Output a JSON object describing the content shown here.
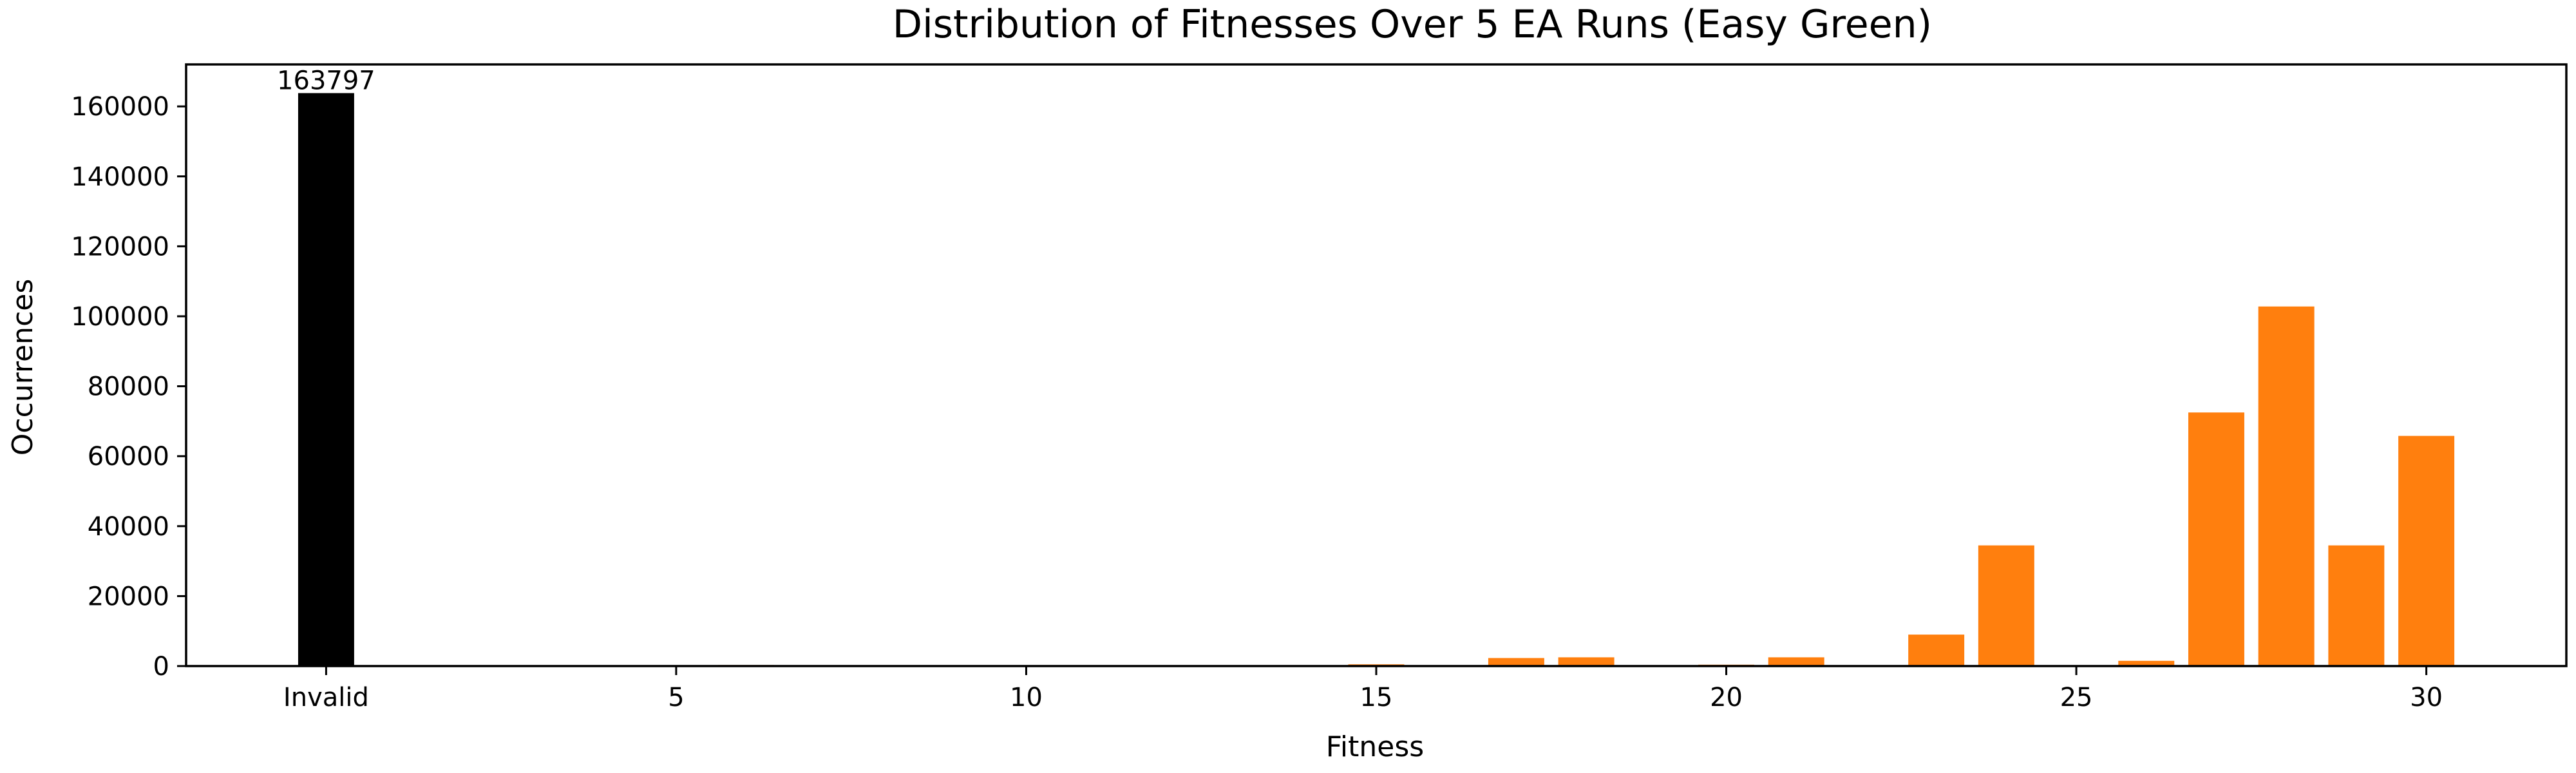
{
  "chart_data": {
    "type": "bar",
    "title": "Distribution of Fitnesses Over 5 EA Runs (Easy Green)",
    "xlabel": "Fitness",
    "ylabel": "Occurrences",
    "xlim": [
      -2,
      32
    ],
    "ylim": [
      0,
      172000
    ],
    "x_ticks": [
      {
        "value": 0,
        "label": "Invalid"
      },
      {
        "value": 5,
        "label": "5"
      },
      {
        "value": 10,
        "label": "10"
      },
      {
        "value": 15,
        "label": "15"
      },
      {
        "value": 20,
        "label": "20"
      },
      {
        "value": 25,
        "label": "25"
      },
      {
        "value": 30,
        "label": "30"
      }
    ],
    "y_ticks": [
      0,
      20000,
      40000,
      60000,
      80000,
      100000,
      120000,
      140000,
      160000
    ],
    "grid": false,
    "legend": "none",
    "colors": {
      "invalid": "#000000",
      "valid": "#ff7f0e",
      "axes": "#000000"
    },
    "series": [
      {
        "values_by_x": [
          {
            "x": 0,
            "value": 163797,
            "category": "Invalid",
            "label": "163797"
          },
          {
            "x": 6,
            "value": 300
          },
          {
            "x": 11,
            "value": 200
          },
          {
            "x": 15,
            "value": 500
          },
          {
            "x": 17,
            "value": 2300
          },
          {
            "x": 18,
            "value": 2500
          },
          {
            "x": 20,
            "value": 400
          },
          {
            "x": 21,
            "value": 2500
          },
          {
            "x": 23,
            "value": 9000
          },
          {
            "x": 24,
            "value": 34500
          },
          {
            "x": 25,
            "value": 100
          },
          {
            "x": 26,
            "value": 1500
          },
          {
            "x": 27,
            "value": 72500
          },
          {
            "x": 28,
            "value": 102800
          },
          {
            "x": 29,
            "value": 34500
          },
          {
            "x": 30,
            "value": 65800
          }
        ]
      }
    ]
  }
}
